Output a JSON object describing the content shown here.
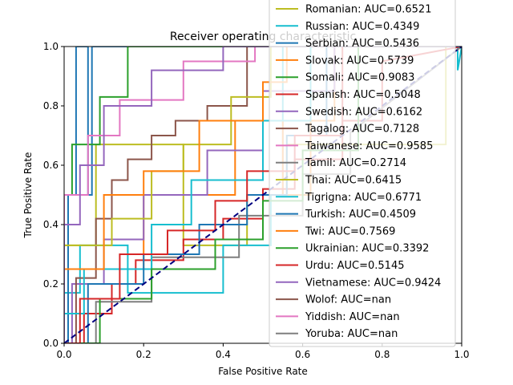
{
  "chart_data": {
    "type": "line",
    "title": "Receiver operating characteristic",
    "xlabel": "False Positive Rate",
    "ylabel": "True Positive Rate",
    "xlim": [
      0,
      1
    ],
    "ylim": [
      0,
      1
    ],
    "x_ticks": [
      "0.0",
      "0.2",
      "0.4",
      "0.6",
      "0.8",
      "1.0"
    ],
    "y_ticks": [
      "0.0",
      "0.2",
      "0.4",
      "0.6",
      "0.8",
      "1.0"
    ],
    "grid": false,
    "legend_position": "upper-right, extends beyond the axes",
    "diagonal": {
      "x": [
        0,
        1
      ],
      "y": [
        0,
        1
      ],
      "color": "#000080",
      "style": "dashed"
    },
    "series": [
      {
        "name": "Romanian: AUC=0.6521",
        "color": "#bcbd22",
        "x": [
          0,
          0.0,
          0.08,
          0.08,
          0.3,
          0.3,
          0.46,
          0.46,
          0.56,
          0.56,
          0.96,
          0.96,
          1
        ],
        "y": [
          0,
          0.33,
          0.33,
          0.67,
          0.67,
          0.33,
          0.33,
          0.5,
          0.5,
          0.67,
          0.67,
          1,
          1
        ]
      },
      {
        "name": "Russian: AUC=0.4349",
        "color": "#17becf",
        "x": [
          0,
          0.0,
          0.04,
          0.04,
          0.16,
          0.16,
          0.4,
          0.4,
          0.52,
          0.52,
          0.55,
          0.55,
          0.99,
          0.99,
          1
        ],
        "y": [
          0,
          0.17,
          0.17,
          0.33,
          0.33,
          0.17,
          0.17,
          0.33,
          0.33,
          0.5,
          0.5,
          1,
          1,
          0.92,
          1
        ]
      },
      {
        "name": "Serbian: AUC=0.5436",
        "color": "#1f77b4",
        "x": [
          0,
          0.01,
          0.01,
          0.03,
          0.03,
          0.06,
          0.06,
          0.07,
          0.07,
          0.98,
          0.98,
          1
        ],
        "y": [
          0,
          0,
          0.5,
          0.5,
          1,
          1,
          0.5,
          0.5,
          1,
          1,
          1,
          1
        ]
      },
      {
        "name": "Slovak: AUC=0.5739",
        "color": "#ff7f0e",
        "x": [
          0,
          0.0,
          0.2,
          0.2,
          0.43,
          0.43,
          0.55,
          0.55,
          0.62,
          0.62,
          0.68,
          0.68,
          1
        ],
        "y": [
          0,
          0.25,
          0.25,
          0.5,
          0.5,
          0.75,
          0.75,
          0.5,
          0.5,
          0.75,
          0.75,
          1,
          1
        ]
      },
      {
        "name": "Somali: AUC=0.9083",
        "color": "#2ca02c",
        "x": [
          0,
          0.0,
          0.02,
          0.02,
          0.09,
          0.09,
          0.16,
          0.16,
          0.26,
          0.26,
          0.36,
          0.36,
          0.5,
          0.5,
          1
        ],
        "y": [
          0,
          0.5,
          0.5,
          0.67,
          0.67,
          0.83,
          0.83,
          1,
          1,
          1,
          1,
          1,
          1,
          1,
          1
        ]
      },
      {
        "name": "Spanish: AUC=0.5048",
        "color": "#d62728",
        "x": [
          0,
          0.05,
          0.05,
          0.12,
          0.12,
          0.18,
          0.18,
          0.3,
          0.3,
          0.4,
          0.4,
          0.5,
          0.5,
          0.58,
          0.58,
          0.7,
          0.7,
          0.8,
          0.8,
          1
        ],
        "y": [
          0,
          0,
          0.1,
          0.1,
          0.2,
          0.2,
          0.28,
          0.28,
          0.35,
          0.35,
          0.42,
          0.42,
          0.52,
          0.52,
          0.62,
          0.62,
          0.75,
          0.75,
          0.95,
          1
        ]
      },
      {
        "name": "Swedish: AUC=0.6162",
        "color": "#9467bd",
        "x": [
          0,
          0.02,
          0.02,
          0.1,
          0.1,
          0.2,
          0.2,
          0.36,
          0.36,
          0.5,
          0.5,
          0.68,
          0.68,
          1
        ],
        "y": [
          0,
          0,
          0.2,
          0.2,
          0.35,
          0.35,
          0.5,
          0.5,
          0.65,
          0.65,
          0.85,
          0.85,
          1,
          1
        ]
      },
      {
        "name": "Tagalog: AUC=0.7128",
        "color": "#8c564b",
        "x": [
          0,
          0.03,
          0.03,
          0.08,
          0.08,
          0.12,
          0.12,
          0.16,
          0.16,
          0.22,
          0.22,
          0.28,
          0.28,
          0.36,
          0.36,
          0.46,
          0.46,
          1
        ],
        "y": [
          0,
          0,
          0.22,
          0.22,
          0.42,
          0.42,
          0.55,
          0.55,
          0.62,
          0.62,
          0.7,
          0.7,
          0.75,
          0.75,
          0.8,
          0.8,
          1,
          1
        ]
      },
      {
        "name": "Taiwanese: AUC=0.9585",
        "color": "#e377c2",
        "x": [
          0,
          0.0,
          0.06,
          0.06,
          0.14,
          0.14,
          0.3,
          0.3,
          0.48,
          0.48,
          1
        ],
        "y": [
          0,
          0.5,
          0.5,
          0.7,
          0.7,
          0.82,
          0.82,
          0.95,
          0.95,
          1,
          1
        ]
      },
      {
        "name": "Tamil: AUC=0.2714",
        "color": "#7f7f7f",
        "x": [
          0,
          0.08,
          0.08,
          0.22,
          0.22,
          0.44,
          0.44,
          0.6,
          0.6,
          0.72,
          0.72,
          1
        ],
        "y": [
          0,
          0,
          0.14,
          0.14,
          0.29,
          0.29,
          0.43,
          0.43,
          0.57,
          0.57,
          0.71,
          1
        ]
      },
      {
        "name": "Thai: AUC=0.6415",
        "color": "#bcbd22",
        "x": [
          0,
          0.0,
          0.12,
          0.12,
          0.22,
          0.22,
          0.3,
          0.3,
          0.42,
          0.42,
          0.52,
          0.52,
          1
        ],
        "y": [
          0,
          0.33,
          0.33,
          0.42,
          0.42,
          0.58,
          0.58,
          0.67,
          0.67,
          0.83,
          0.83,
          1,
          1
        ]
      },
      {
        "name": "Tigrigna: AUC=0.6771",
        "color": "#17becf",
        "x": [
          0,
          0.0,
          0.05,
          0.05,
          0.22,
          0.22,
          0.32,
          0.32,
          0.5,
          0.5,
          0.62,
          0.62,
          1
        ],
        "y": [
          0,
          0.1,
          0.1,
          0.25,
          0.25,
          0.4,
          0.4,
          0.55,
          0.55,
          0.75,
          0.75,
          1,
          1
        ]
      },
      {
        "name": "Turkish: AUC=0.4509",
        "color": "#1f77b4",
        "x": [
          0,
          0.06,
          0.06,
          0.2,
          0.2,
          0.34,
          0.34,
          0.46,
          0.46,
          0.56,
          0.56,
          0.66,
          0.66,
          1
        ],
        "y": [
          0,
          0,
          0.2,
          0.2,
          0.3,
          0.3,
          0.4,
          0.4,
          0.5,
          0.5,
          0.7,
          0.7,
          1,
          1
        ]
      },
      {
        "name": "Twi: AUC=0.7569",
        "color": "#ff7f0e",
        "x": [
          0,
          0.0,
          0.1,
          0.1,
          0.2,
          0.2,
          0.34,
          0.34,
          0.5,
          0.5,
          0.56,
          0.56,
          1
        ],
        "y": [
          0,
          0.25,
          0.25,
          0.5,
          0.5,
          0.58,
          0.58,
          0.75,
          0.75,
          0.88,
          0.88,
          1,
          1
        ]
      },
      {
        "name": "Ukrainian: AUC=0.3392",
        "color": "#2ca02c",
        "x": [
          0,
          0.09,
          0.09,
          0.22,
          0.22,
          0.38,
          0.38,
          0.5,
          0.5,
          0.6,
          0.6,
          0.74,
          0.74,
          1
        ],
        "y": [
          0,
          0,
          0.15,
          0.15,
          0.25,
          0.25,
          0.35,
          0.35,
          0.48,
          0.48,
          0.65,
          0.65,
          1,
          1
        ]
      },
      {
        "name": "Urdu: AUC=0.5145",
        "color": "#d62728",
        "x": [
          0,
          0.04,
          0.04,
          0.14,
          0.14,
          0.26,
          0.26,
          0.38,
          0.38,
          0.46,
          0.46,
          0.58,
          0.58,
          0.7,
          0.7,
          1
        ],
        "y": [
          0,
          0,
          0.15,
          0.15,
          0.3,
          0.3,
          0.38,
          0.38,
          0.48,
          0.48,
          0.58,
          0.58,
          0.7,
          0.7,
          1,
          1
        ]
      },
      {
        "name": "Vietnamese: AUC=0.9424",
        "color": "#9467bd",
        "x": [
          0,
          0.0,
          0.04,
          0.04,
          0.1,
          0.1,
          0.22,
          0.22,
          0.4,
          0.4,
          1
        ],
        "y": [
          0,
          0.4,
          0.4,
          0.6,
          0.6,
          0.8,
          0.8,
          0.92,
          0.92,
          1,
          1
        ]
      },
      {
        "name": "Wolof: AUC=nan",
        "color": "#8c564b",
        "x": [],
        "y": []
      },
      {
        "name": "Yiddish: AUC=nan",
        "color": "#e377c2",
        "x": [],
        "y": []
      },
      {
        "name": "Yoruba: AUC=nan",
        "color": "#7f7f7f",
        "x": [],
        "y": []
      }
    ]
  }
}
